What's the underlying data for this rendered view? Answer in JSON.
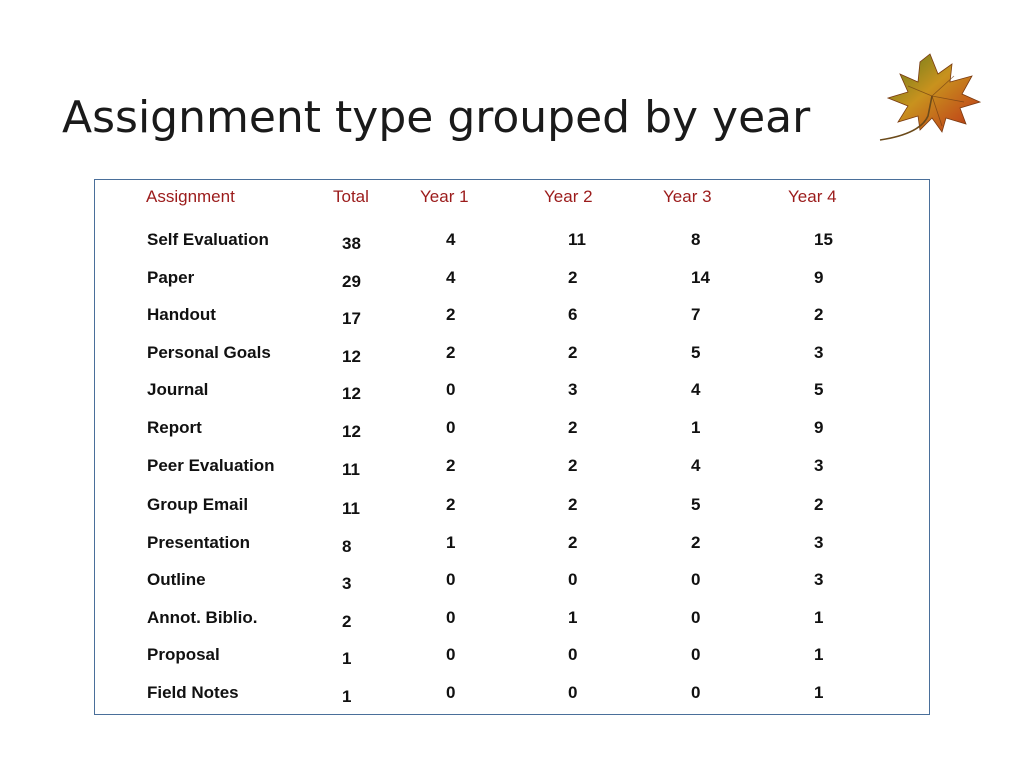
{
  "slide": {
    "title": "Assignment type grouped by year"
  },
  "table": {
    "headers": [
      "Assignment",
      "Total",
      "Year 1",
      "Year 2",
      "Year 3",
      "Year 4"
    ],
    "rows": [
      [
        "Self Evaluation",
        "38",
        "4",
        "11",
        "8",
        "15"
      ],
      [
        "Paper",
        "29",
        "4",
        "2",
        "14",
        "9"
      ],
      [
        "Handout",
        "17",
        "2",
        "6",
        "7",
        "2"
      ],
      [
        "Personal Goals",
        "12",
        "2",
        "2",
        "5",
        "3"
      ],
      [
        "Journal",
        "12",
        "0",
        "3",
        "4",
        "5"
      ],
      [
        "Report",
        "12",
        "0",
        "2",
        "1",
        "9"
      ],
      [
        "Peer Evaluation",
        "11",
        "2",
        "2",
        "4",
        "3"
      ],
      [
        "Group Email",
        "11",
        "2",
        "2",
        "5",
        "2"
      ],
      [
        "Presentation",
        "8",
        "1",
        "2",
        "2",
        "3"
      ],
      [
        "Outline",
        "3",
        "0",
        "0",
        "0",
        "3"
      ],
      [
        "Annot. Biblio.",
        "2",
        "0",
        "1",
        "0",
        "1"
      ],
      [
        "Proposal",
        "1",
        "0",
        "0",
        "0",
        "1"
      ],
      [
        "Field Notes",
        "1",
        "0",
        "0",
        "0",
        "1"
      ]
    ]
  },
  "decoration": {
    "leaf": "maple-leaf-icon"
  },
  "colors": {
    "header": "#9b1b1b",
    "border": "#4a6f9a"
  }
}
